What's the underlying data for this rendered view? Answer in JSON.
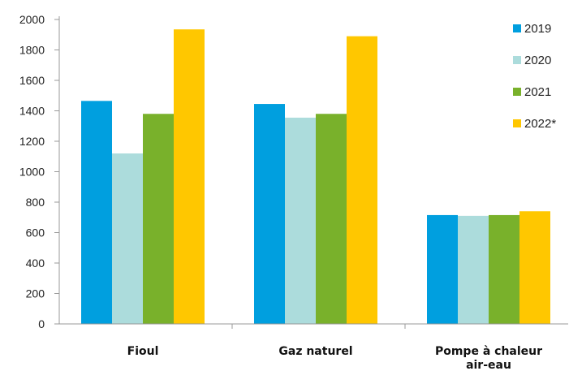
{
  "chart_data": {
    "type": "bar",
    "categories": [
      "Fioul",
      "Gaz naturel",
      [
        "Pompe à chaleur",
        "air-eau"
      ]
    ],
    "series": [
      {
        "name": "2019",
        "color": "#009fdf",
        "values": [
          1465,
          1445,
          715
        ]
      },
      {
        "name": "2020",
        "color": "#acdcdc",
        "values": [
          1120,
          1355,
          710
        ]
      },
      {
        "name": "2021",
        "color": "#79b12b",
        "values": [
          1380,
          1380,
          715
        ]
      },
      {
        "name": "2022*",
        "color": "#ffc700",
        "values": [
          1935,
          1890,
          740
        ]
      }
    ],
    "ylim": [
      0,
      2000
    ],
    "yticks": [
      0,
      200,
      400,
      600,
      800,
      1000,
      1200,
      1400,
      1600,
      1800,
      2000
    ],
    "grid": false,
    "legend_position": "top-right"
  }
}
